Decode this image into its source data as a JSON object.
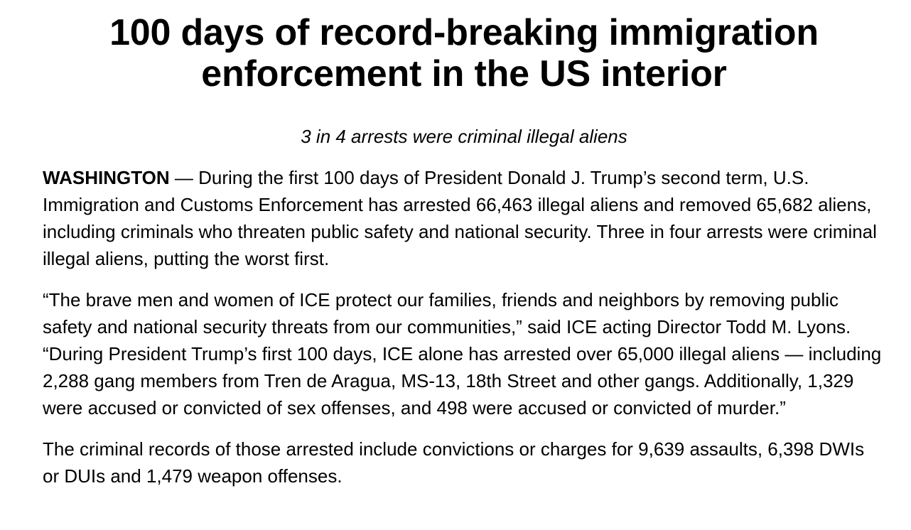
{
  "article": {
    "title": "100 days of record-breaking immigration enforcement in the US interior",
    "subtitle": "3 in 4 arrests were criminal illegal aliens",
    "paragraph1": {
      "dateline": "WASHINGTON",
      "text": " — During the first 100 days of President Donald J. Trump’s second term, U.S. Immigration and Customs Enforcement has arrested 66,463 illegal aliens and removed 65,682 aliens, including criminals who threaten public safety and national security. Three in four arrests were criminal illegal aliens, putting the worst first."
    },
    "paragraph2": "“The brave men and women of ICE protect our families, friends and neighbors by removing public safety and national security threats from our communities,” said ICE acting Director Todd M. Lyons. “During President Trump’s first 100 days, ICE alone has arrested over 65,000 illegal aliens — including 2,288 gang members from Tren de Aragua, MS-13, 18th Street and other gangs. Additionally, 1,329 were accused or convicted of sex offenses, and 498 were accused or convicted of murder.”",
    "paragraph3": "The criminal records of those arrested include convictions or charges for 9,639 assaults, 6,398 DWIs or DUIs and 1,479 weapon offenses."
  }
}
